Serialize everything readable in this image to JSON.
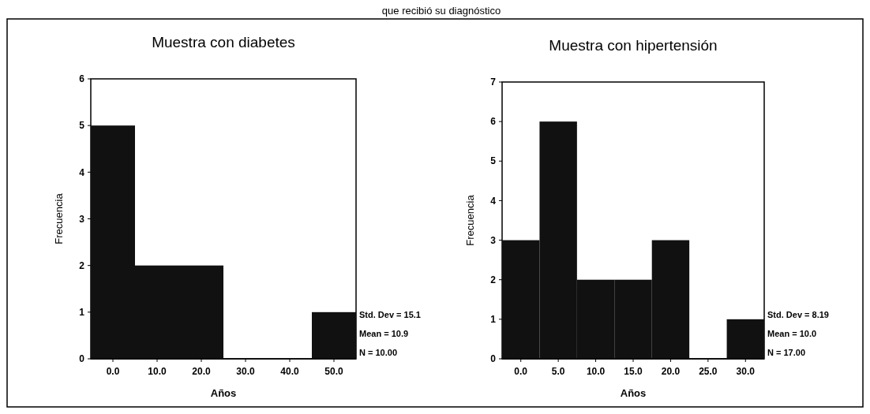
{
  "chart_data": [
    {
      "type": "histogram",
      "title": "Muestra con diabetes",
      "xlabel": "Años",
      "ylabel": "Frecuencia",
      "bins": [
        -5,
        5,
        15,
        25,
        35,
        45,
        55
      ],
      "values": [
        5,
        2,
        2,
        0,
        0,
        1
      ],
      "color": "#111111",
      "xlim": [
        -5,
        55
      ],
      "xticks": [
        {
          "value": 0,
          "label": "0.0"
        },
        {
          "value": 10,
          "label": "10.0"
        },
        {
          "value": 20,
          "label": "20.0"
        },
        {
          "value": 30,
          "label": "30.0"
        },
        {
          "value": 40,
          "label": "40.0"
        },
        {
          "value": 50,
          "label": "50.0"
        }
      ],
      "ylim": [
        0,
        6
      ],
      "yticks": [
        0,
        1,
        2,
        3,
        4,
        5,
        6
      ],
      "annotations": [
        "que recibió su diagnóstico",
        "Std. Dev = 15.1",
        "Mean = 10.9",
        "N = 10.00"
      ]
    },
    {
      "type": "histogram",
      "title": "Muestra con hipertensión",
      "xlabel": "Años",
      "ylabel": "Frecuencia",
      "bins": [
        -2.5,
        2.5,
        7.5,
        12.5,
        17.5,
        22.5,
        27.5,
        32.5
      ],
      "values": [
        3,
        6,
        2,
        2,
        3,
        0,
        1
      ],
      "color": "#111111",
      "xlim": [
        -2.5,
        32.5
      ],
      "xticks": [
        {
          "value": 0,
          "label": "0.0"
        },
        {
          "value": 5,
          "label": "5.0"
        },
        {
          "value": 10,
          "label": "10.0"
        },
        {
          "value": 15,
          "label": "15.0"
        },
        {
          "value": 20,
          "label": "20.0"
        },
        {
          "value": 25,
          "label": "25.0"
        },
        {
          "value": 30,
          "label": "30.0"
        }
      ],
      "ylim": [
        0,
        7
      ],
      "yticks": [
        0,
        1,
        2,
        3,
        4,
        5,
        6,
        7
      ],
      "annotations": [
        "Std. Dev = 8.19",
        "Mean = 10.0",
        "N = 17.00"
      ]
    }
  ]
}
